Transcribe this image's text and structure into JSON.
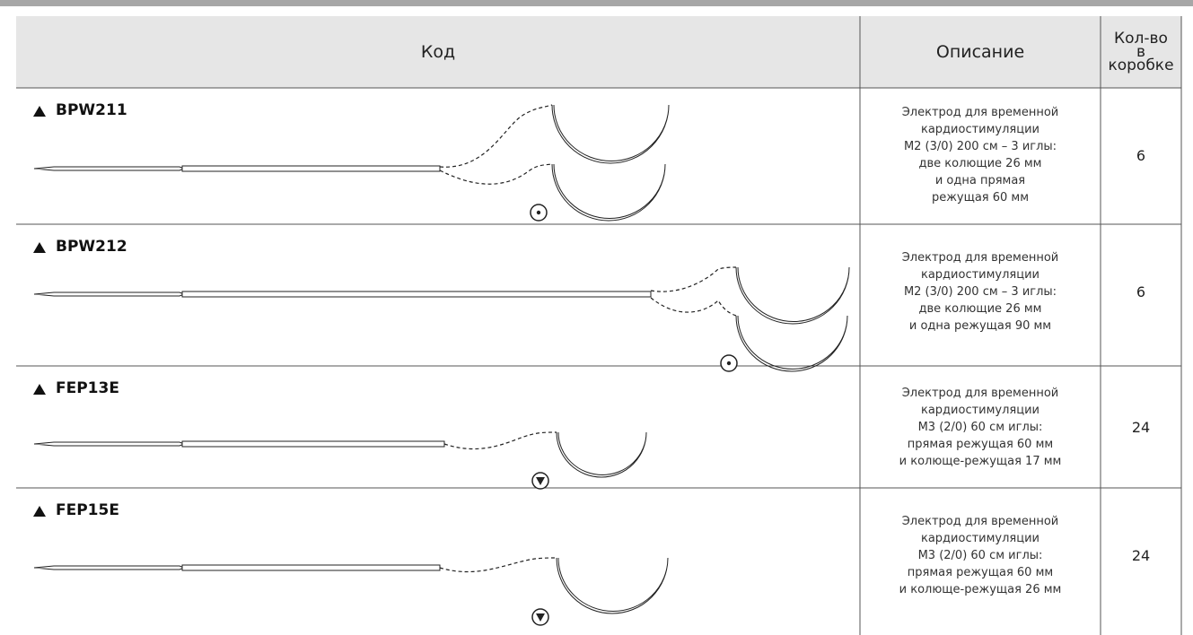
{
  "table": {
    "header": {
      "code": "Код",
      "description": "Описание",
      "quantity": [
        "Кол-во",
        "в",
        "коробке"
      ]
    },
    "rows": [
      {
        "code": "BPW211",
        "description": [
          "Электрод для временной",
          "кардиостимуляции",
          "M2 (3/0) 200 см – 3 иглы:",
          "две колющие 26 мм",
          "и одна прямая",
          "режущая 60 мм"
        ],
        "quantity": 6
      },
      {
        "code": "BPW212",
        "description": [
          "Электрод для временной",
          "кардиостимуляции",
          "M2 (3/0) 200 см – 3 иглы:",
          "две колющие 26 мм",
          "и одна режущая 90 мм"
        ],
        "quantity": 6
      },
      {
        "code": "FEP13E",
        "description": [
          "Электрод для временной",
          "кардиостимуляции",
          "M3 (2/0) 60 см иглы:",
          "прямая режущая 60 мм",
          "и колюще-режущая 17 мм"
        ],
        "quantity": 24
      },
      {
        "code": "FEP15E",
        "description": [
          "Электрод для временной",
          "кардиостимуляции",
          "M3 (2/0) 60 см иглы:",
          "прямая режущая 60 мм",
          "и колюще-режущая 26 мм"
        ],
        "quantity": 24
      }
    ]
  }
}
